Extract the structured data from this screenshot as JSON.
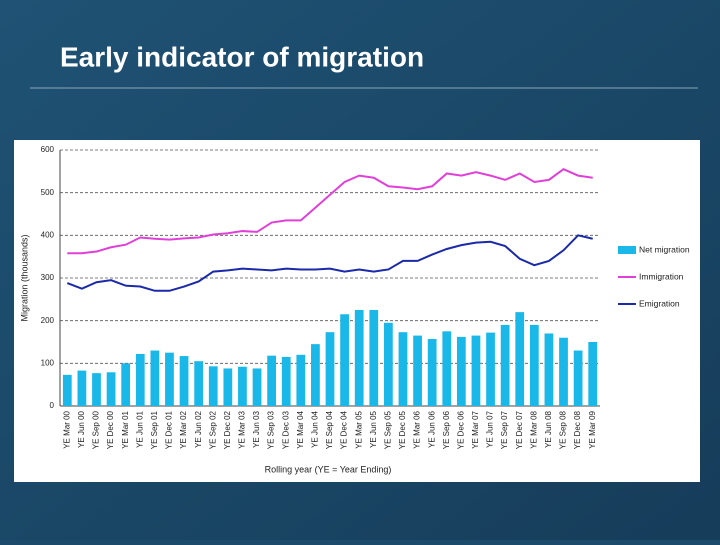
{
  "slide_title": "Early indicator of migration",
  "chart_data": {
    "type": "combo",
    "x_label": "Rolling year (YE = Year Ending)",
    "y_label": "Migration (thousands)",
    "categories": [
      "YE Mar 00",
      "YE Jun 00",
      "YE Sep 00",
      "YE Dec 00",
      "YE Mar 01",
      "YE Jun 01",
      "YE Sep 01",
      "YE Dec 01",
      "YE Mar 02",
      "YE Jun 02",
      "YE Sep 02",
      "YE Dec 02",
      "YE Mar 03",
      "YE Jun 03",
      "YE Sep 03",
      "YE Dec 03",
      "YE Mar 04",
      "YE Jun 04",
      "YE Sep 04",
      "YE Dec 04",
      "YE Mar 05",
      "YE Jun 05",
      "YE Sep 05",
      "YE Dec 05",
      "YE Mar 06",
      "YE Jun 06",
      "YE Sep 06",
      "YE Dec 06",
      "YE Mar 07",
      "YE Jun 07",
      "YE Sep 07",
      "YE Dec 07",
      "YE Mar 08",
      "YE Jun 08",
      "YE Sep 08",
      "YE Dec 08",
      "YE Mar 09"
    ],
    "series": [
      {
        "name": "Net migration",
        "kind": "bar",
        "color": "#1ab8e8",
        "values": [
          73,
          83,
          77,
          79,
          100,
          122,
          130,
          125,
          117,
          105,
          93,
          88,
          92,
          88,
          118,
          115,
          120,
          145,
          173,
          215,
          225,
          225,
          195,
          173,
          165,
          157,
          175,
          162,
          165,
          172,
          190,
          220,
          190,
          170,
          160,
          130,
          150
        ]
      },
      {
        "name": "Immigration",
        "kind": "line",
        "color": "#e040d8",
        "values": [
          358,
          358,
          362,
          372,
          378,
          395,
          392,
          390,
          393,
          395,
          402,
          405,
          410,
          408,
          430,
          435,
          435,
          465,
          495,
          525,
          540,
          535,
          515,
          512,
          508,
          515,
          545,
          540,
          548,
          540,
          530,
          545,
          525,
          530,
          555,
          540,
          535
        ]
      },
      {
        "name": "Emigration",
        "kind": "line",
        "color": "#1a2aa8",
        "values": [
          288,
          275,
          290,
          295,
          282,
          280,
          270,
          270,
          280,
          292,
          315,
          318,
          322,
          320,
          318,
          322,
          320,
          320,
          322,
          315,
          320,
          315,
          320,
          340,
          340,
          355,
          368,
          377,
          383,
          385,
          375,
          345,
          330,
          340,
          365,
          400,
          392
        ]
      }
    ],
    "ylim": [
      0,
      600
    ],
    "yticks": [
      0,
      100,
      200,
      300,
      400,
      500,
      600
    ],
    "grid": true
  }
}
